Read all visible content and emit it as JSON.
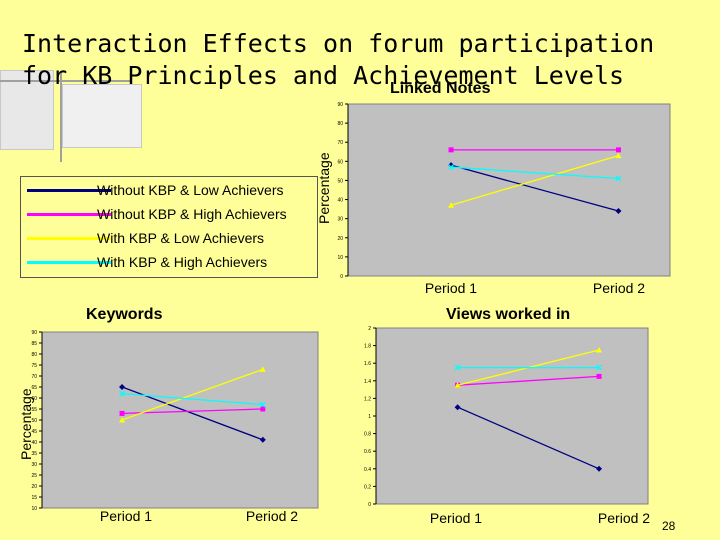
{
  "slide": {
    "title": "Interaction Effects on forum participation for KB Principles and Achievement Levels",
    "page_number": "28",
    "background": "#ffff99"
  },
  "legend": {
    "items": [
      {
        "label": "Without KBP & Low Achievers",
        "color": "#000080"
      },
      {
        "label": "Without KBP & High Achievers",
        "color": "#ff00ff"
      },
      {
        "label": "With KBP & Low Achievers",
        "color": "#ffff00"
      },
      {
        "label": "With KBP & High Achievers",
        "color": "#00ffff"
      }
    ]
  },
  "chart_data": [
    {
      "type": "line",
      "title": "Linked Notes",
      "ylabel": "Percentage",
      "xlabel": "",
      "categories": [
        "Period 1",
        "Period 2"
      ],
      "ylim": [
        0,
        90
      ],
      "yticks": [
        0,
        10,
        20,
        30,
        40,
        50,
        60,
        70,
        80,
        90
      ],
      "grid": false,
      "series": [
        {
          "name": "Without KBP & Low Achievers",
          "color": "#000080",
          "marker": "diamond",
          "values": [
            58,
            34
          ]
        },
        {
          "name": "Without KBP & High Achievers",
          "color": "#ff00ff",
          "marker": "square",
          "values": [
            66,
            66
          ]
        },
        {
          "name": "With KBP & Low Achievers",
          "color": "#ffff00",
          "marker": "triangle",
          "values": [
            37,
            63
          ]
        },
        {
          "name": "With KBP & High Achievers",
          "color": "#00ffff",
          "marker": "x",
          "values": [
            57,
            51
          ]
        }
      ]
    },
    {
      "type": "line",
      "title": "Keywords",
      "ylabel": "Percentage",
      "xlabel": "",
      "categories": [
        "Period 1",
        "Period 2"
      ],
      "ylim": [
        10,
        90
      ],
      "yticks": [
        10,
        15,
        20,
        25,
        30,
        35,
        40,
        45,
        50,
        55,
        60,
        65,
        70,
        75,
        80,
        85,
        90
      ],
      "grid": false,
      "series": [
        {
          "name": "Without KBP & Low Achievers",
          "color": "#000080",
          "marker": "diamond",
          "values": [
            65,
            41
          ]
        },
        {
          "name": "Without KBP & High Achievers",
          "color": "#ff00ff",
          "marker": "square",
          "values": [
            53,
            55
          ]
        },
        {
          "name": "With KBP & Low Achievers",
          "color": "#ffff00",
          "marker": "triangle",
          "values": [
            50,
            73
          ]
        },
        {
          "name": "With KBP & High Achievers",
          "color": "#00ffff",
          "marker": "x",
          "values": [
            62,
            57
          ]
        }
      ]
    },
    {
      "type": "line",
      "title": "Views worked in",
      "ylabel": "",
      "xlabel": "",
      "categories": [
        "Period 1",
        "Period 2"
      ],
      "ylim": [
        0,
        2
      ],
      "yticks": [
        0,
        0.2,
        0.4,
        0.6,
        0.8,
        1,
        1.2,
        1.4,
        1.6,
        1.8,
        2
      ],
      "grid": false,
      "series": [
        {
          "name": "Without KBP & Low Achievers",
          "color": "#000080",
          "marker": "diamond",
          "values": [
            1.1,
            0.4
          ]
        },
        {
          "name": "Without KBP & High Achievers",
          "color": "#ff00ff",
          "marker": "square",
          "values": [
            1.35,
            1.45
          ]
        },
        {
          "name": "With KBP & Low Achievers",
          "color": "#ffff00",
          "marker": "triangle",
          "values": [
            1.35,
            1.75
          ]
        },
        {
          "name": "With KBP & High Achievers",
          "color": "#00ffff",
          "marker": "x",
          "values": [
            1.55,
            1.55
          ]
        }
      ]
    }
  ]
}
